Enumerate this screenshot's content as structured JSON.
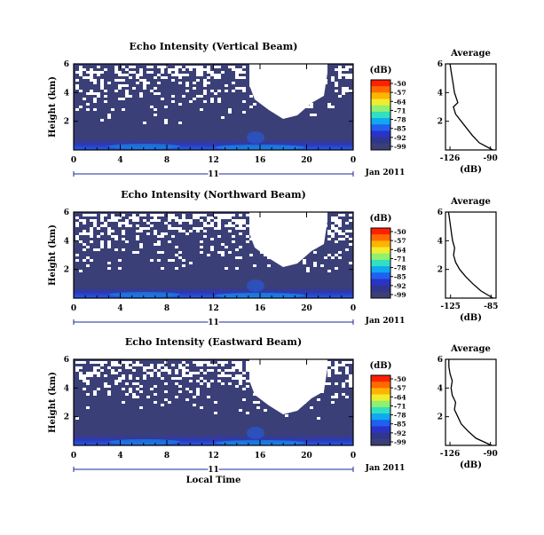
{
  "chart_data": [
    {
      "type": "heatmap",
      "title": "Echo Intensity (Vertical Beam)",
      "ylabel": "Height (km)",
      "x_ticks": [
        "0",
        "4",
        "8",
        "12",
        "16",
        "20",
        "0"
      ],
      "y_ticks": [
        "6",
        "4",
        "2"
      ],
      "xlim": [
        0,
        24
      ],
      "ylim": [
        0,
        6
      ],
      "day_label": "11",
      "month_label": "Jan 2011",
      "colorbar": {
        "unit": "(dB)",
        "ticks": [
          "-50",
          "-57",
          "-64",
          "-71",
          "-78",
          "-85",
          "-92",
          "-99"
        ],
        "colors": [
          "#ff2000",
          "#ff6a00",
          "#ffb400",
          "#f0ec30",
          "#90f070",
          "#30e0c0",
          "#10a8f0",
          "#2060f0",
          "#2a33c8",
          "#30368a",
          "#3b3f77"
        ]
      },
      "field_color": "#3b3f77",
      "profile": {
        "title": "Average",
        "xlabel": "(dB)",
        "x_ticks": [
          "-126",
          "-90"
        ],
        "y_ticks": [
          "6",
          "4",
          "2"
        ],
        "xlim": [
          -130,
          -85
        ],
        "points": [
          [
            -88,
            0
          ],
          [
            -100,
            0.5
          ],
          [
            -106,
            1
          ],
          [
            -111,
            1.5
          ],
          [
            -116,
            2
          ],
          [
            -121,
            2.5
          ],
          [
            -123,
            3
          ],
          [
            -119,
            3.3
          ],
          [
            -122,
            4
          ],
          [
            -123,
            4.5
          ],
          [
            -124,
            5
          ],
          [
            -125,
            5.5
          ],
          [
            -126,
            6
          ]
        ]
      }
    },
    {
      "type": "heatmap",
      "title": "Echo Intensity (Northward Beam)",
      "ylabel": "Height (km)",
      "x_ticks": [
        "0",
        "4",
        "8",
        "12",
        "16",
        "20",
        "0"
      ],
      "y_ticks": [
        "6",
        "4",
        "2"
      ],
      "xlim": [
        0,
        24
      ],
      "ylim": [
        0,
        6
      ],
      "day_label": "11",
      "month_label": "Jan 2011",
      "colorbar": {
        "unit": "(dB)",
        "ticks": [
          "-50",
          "-57",
          "-64",
          "-71",
          "-78",
          "-85",
          "-92",
          "-99"
        ],
        "colors": [
          "#ff2000",
          "#ff6a00",
          "#ffb400",
          "#f0ec30",
          "#90f070",
          "#30e0c0",
          "#10a8f0",
          "#2060f0",
          "#2a33c8",
          "#30368a",
          "#3b3f77"
        ]
      },
      "field_color": "#3b3f77",
      "profile": {
        "title": "Average",
        "xlabel": "(dB)",
        "x_ticks": [
          "-125",
          "-85"
        ],
        "y_ticks": [
          "6",
          "4",
          "2"
        ],
        "xlim": [
          -130,
          -80
        ],
        "points": [
          [
            -83,
            0
          ],
          [
            -95,
            0.5
          ],
          [
            -103,
            1
          ],
          [
            -110,
            1.5
          ],
          [
            -116,
            2
          ],
          [
            -120,
            2.5
          ],
          [
            -122,
            3
          ],
          [
            -121,
            3.5
          ],
          [
            -123,
            4
          ],
          [
            -124,
            4.5
          ],
          [
            -125,
            5
          ],
          [
            -126,
            5.5
          ],
          [
            -127,
            6
          ]
        ]
      }
    },
    {
      "type": "heatmap",
      "title": "Echo Intensity (Eastward Beam)",
      "ylabel": "Height (km)",
      "xlabel": "Local Time",
      "x_ticks": [
        "0",
        "4",
        "8",
        "12",
        "16",
        "20",
        "0"
      ],
      "y_ticks": [
        "6",
        "4",
        "2"
      ],
      "xlim": [
        0,
        24
      ],
      "ylim": [
        0,
        6
      ],
      "day_label": "11",
      "month_label": "Jan 2011",
      "colorbar": {
        "unit": "(dB)",
        "ticks": [
          "-50",
          "-57",
          "-64",
          "-71",
          "-78",
          "-85",
          "-92",
          "-99"
        ],
        "colors": [
          "#ff2000",
          "#ff6a00",
          "#ffb400",
          "#f0ec30",
          "#90f070",
          "#30e0c0",
          "#10a8f0",
          "#2060f0",
          "#2a33c8",
          "#30368a",
          "#3b3f77"
        ]
      },
      "field_color": "#3b3f77",
      "profile": {
        "title": "Average",
        "xlabel": "(dB)",
        "x_ticks": [
          "-126",
          "-90"
        ],
        "y_ticks": [
          "6",
          "4",
          "2"
        ],
        "xlim": [
          -130,
          -85
        ],
        "points": [
          [
            -89,
            0
          ],
          [
            -103,
            0.5
          ],
          [
            -110,
            1
          ],
          [
            -116,
            1.5
          ],
          [
            -119,
            2
          ],
          [
            -122,
            2.5
          ],
          [
            -121,
            3
          ],
          [
            -124,
            3.5
          ],
          [
            -125,
            4
          ],
          [
            -124,
            4.5
          ],
          [
            -126,
            5
          ],
          [
            -127,
            5.5
          ],
          [
            -127,
            6
          ]
        ]
      }
    }
  ]
}
